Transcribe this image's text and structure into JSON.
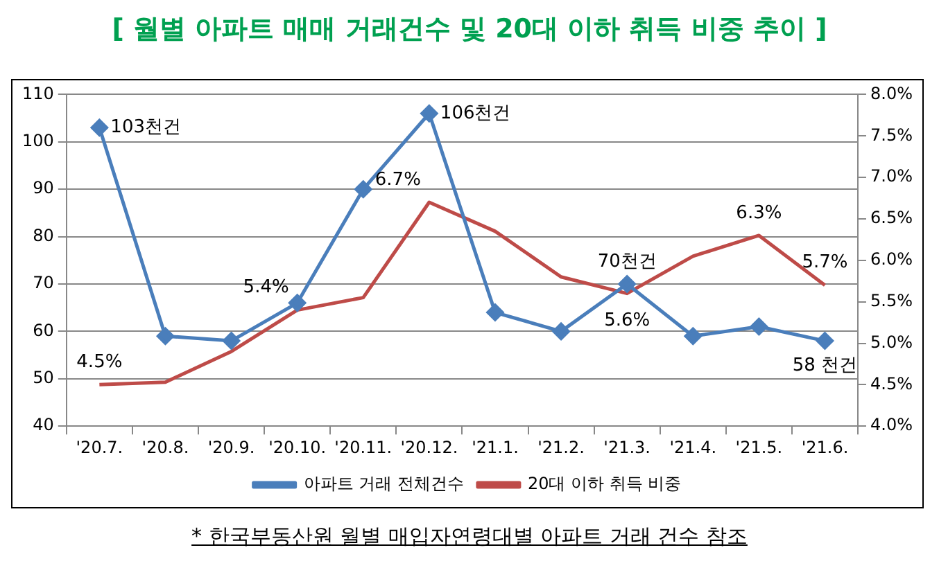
{
  "chart_data": {
    "type": "line",
    "title": "[ 월별 아파트 매매 거래건수 및 20대 이하 취득 비중 추이 ]",
    "annotations": [
      "* 한국부동산원 월별 매입자연령대별 아파트 거래 건수 참조"
    ],
    "categories": [
      "'20.7.",
      "'20.8.",
      "'20.9.",
      "'20.10.",
      "'20.11.",
      "'20.12.",
      "'21.1.",
      "'21.2.",
      "'21.3.",
      "'21.4.",
      "'21.5.",
      "'21.6."
    ],
    "series": [
      {
        "name": "아파트 거래 전체건수",
        "color": "#4a7ebb",
        "marker": "diamond",
        "values": [
          103,
          59,
          58,
          66,
          90,
          106,
          64,
          60,
          70,
          59,
          61,
          58
        ],
        "value_labels": [
          "103천건",
          null,
          null,
          null,
          null,
          "106천건",
          null,
          null,
          "70천건",
          null,
          null,
          "58 천건"
        ]
      },
      {
        "name": "20대 이하 취득 비중",
        "color": "#be4b48",
        "marker": "none",
        "axis": "y2",
        "values": [
          4.5,
          4.53,
          4.9,
          5.4,
          5.55,
          6.7,
          6.35,
          5.8,
          5.6,
          6.05,
          6.3,
          5.7
        ],
        "value_labels": [
          "4.5%",
          null,
          null,
          "5.4%",
          null,
          "6.7%",
          null,
          null,
          "5.6%",
          null,
          "6.3%",
          "5.7%"
        ]
      }
    ],
    "ylim": [
      40,
      110
    ],
    "yticks": [
      40,
      50,
      60,
      70,
      80,
      90,
      100,
      110
    ],
    "y2lim": [
      4.0,
      8.0
    ],
    "y2ticks": [
      {
        "value": 4.0,
        "label": "4.0%"
      },
      {
        "value": 4.5,
        "label": "4.5%"
      },
      {
        "value": 5.0,
        "label": "5.0%"
      },
      {
        "value": 5.5,
        "label": "5.5%"
      },
      {
        "value": 6.0,
        "label": "6.0%"
      },
      {
        "value": 6.5,
        "label": "6.5%"
      },
      {
        "value": 7.0,
        "label": "7.0%"
      },
      {
        "value": 7.5,
        "label": "7.5%"
      },
      {
        "value": 8.0,
        "label": "8.0%"
      }
    ],
    "grid": "y",
    "legend": "bottom"
  }
}
